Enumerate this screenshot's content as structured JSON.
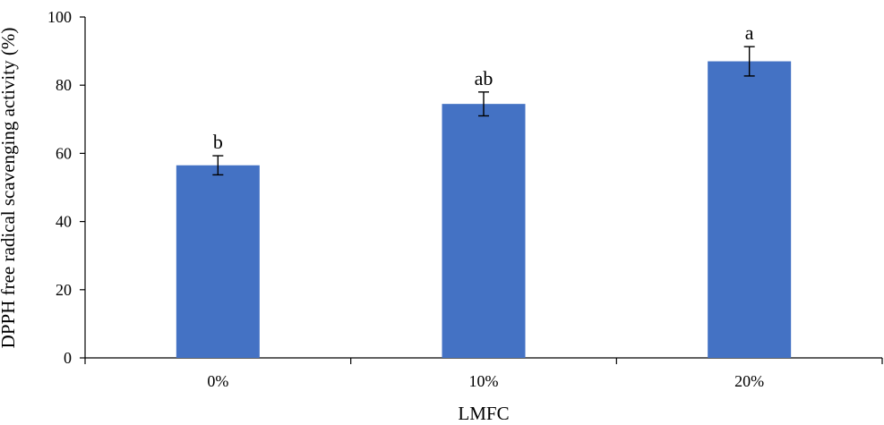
{
  "chart_data": {
    "type": "bar",
    "categories": [
      "0%",
      "10%",
      "20%"
    ],
    "values": [
      56.5,
      74.5,
      87.0
    ],
    "errors": [
      2.8,
      3.5,
      4.3
    ],
    "significance_labels": [
      "b",
      "ab",
      "a"
    ],
    "xlabel": "LMFC",
    "ylabel": "DPPH free radical scavenging activity (%)",
    "ylim": [
      0,
      100
    ],
    "yticks": [
      "0",
      "20",
      "40",
      "60",
      "80",
      "100"
    ],
    "bar_color": "#4472C4",
    "grid": false,
    "legend": "none"
  }
}
